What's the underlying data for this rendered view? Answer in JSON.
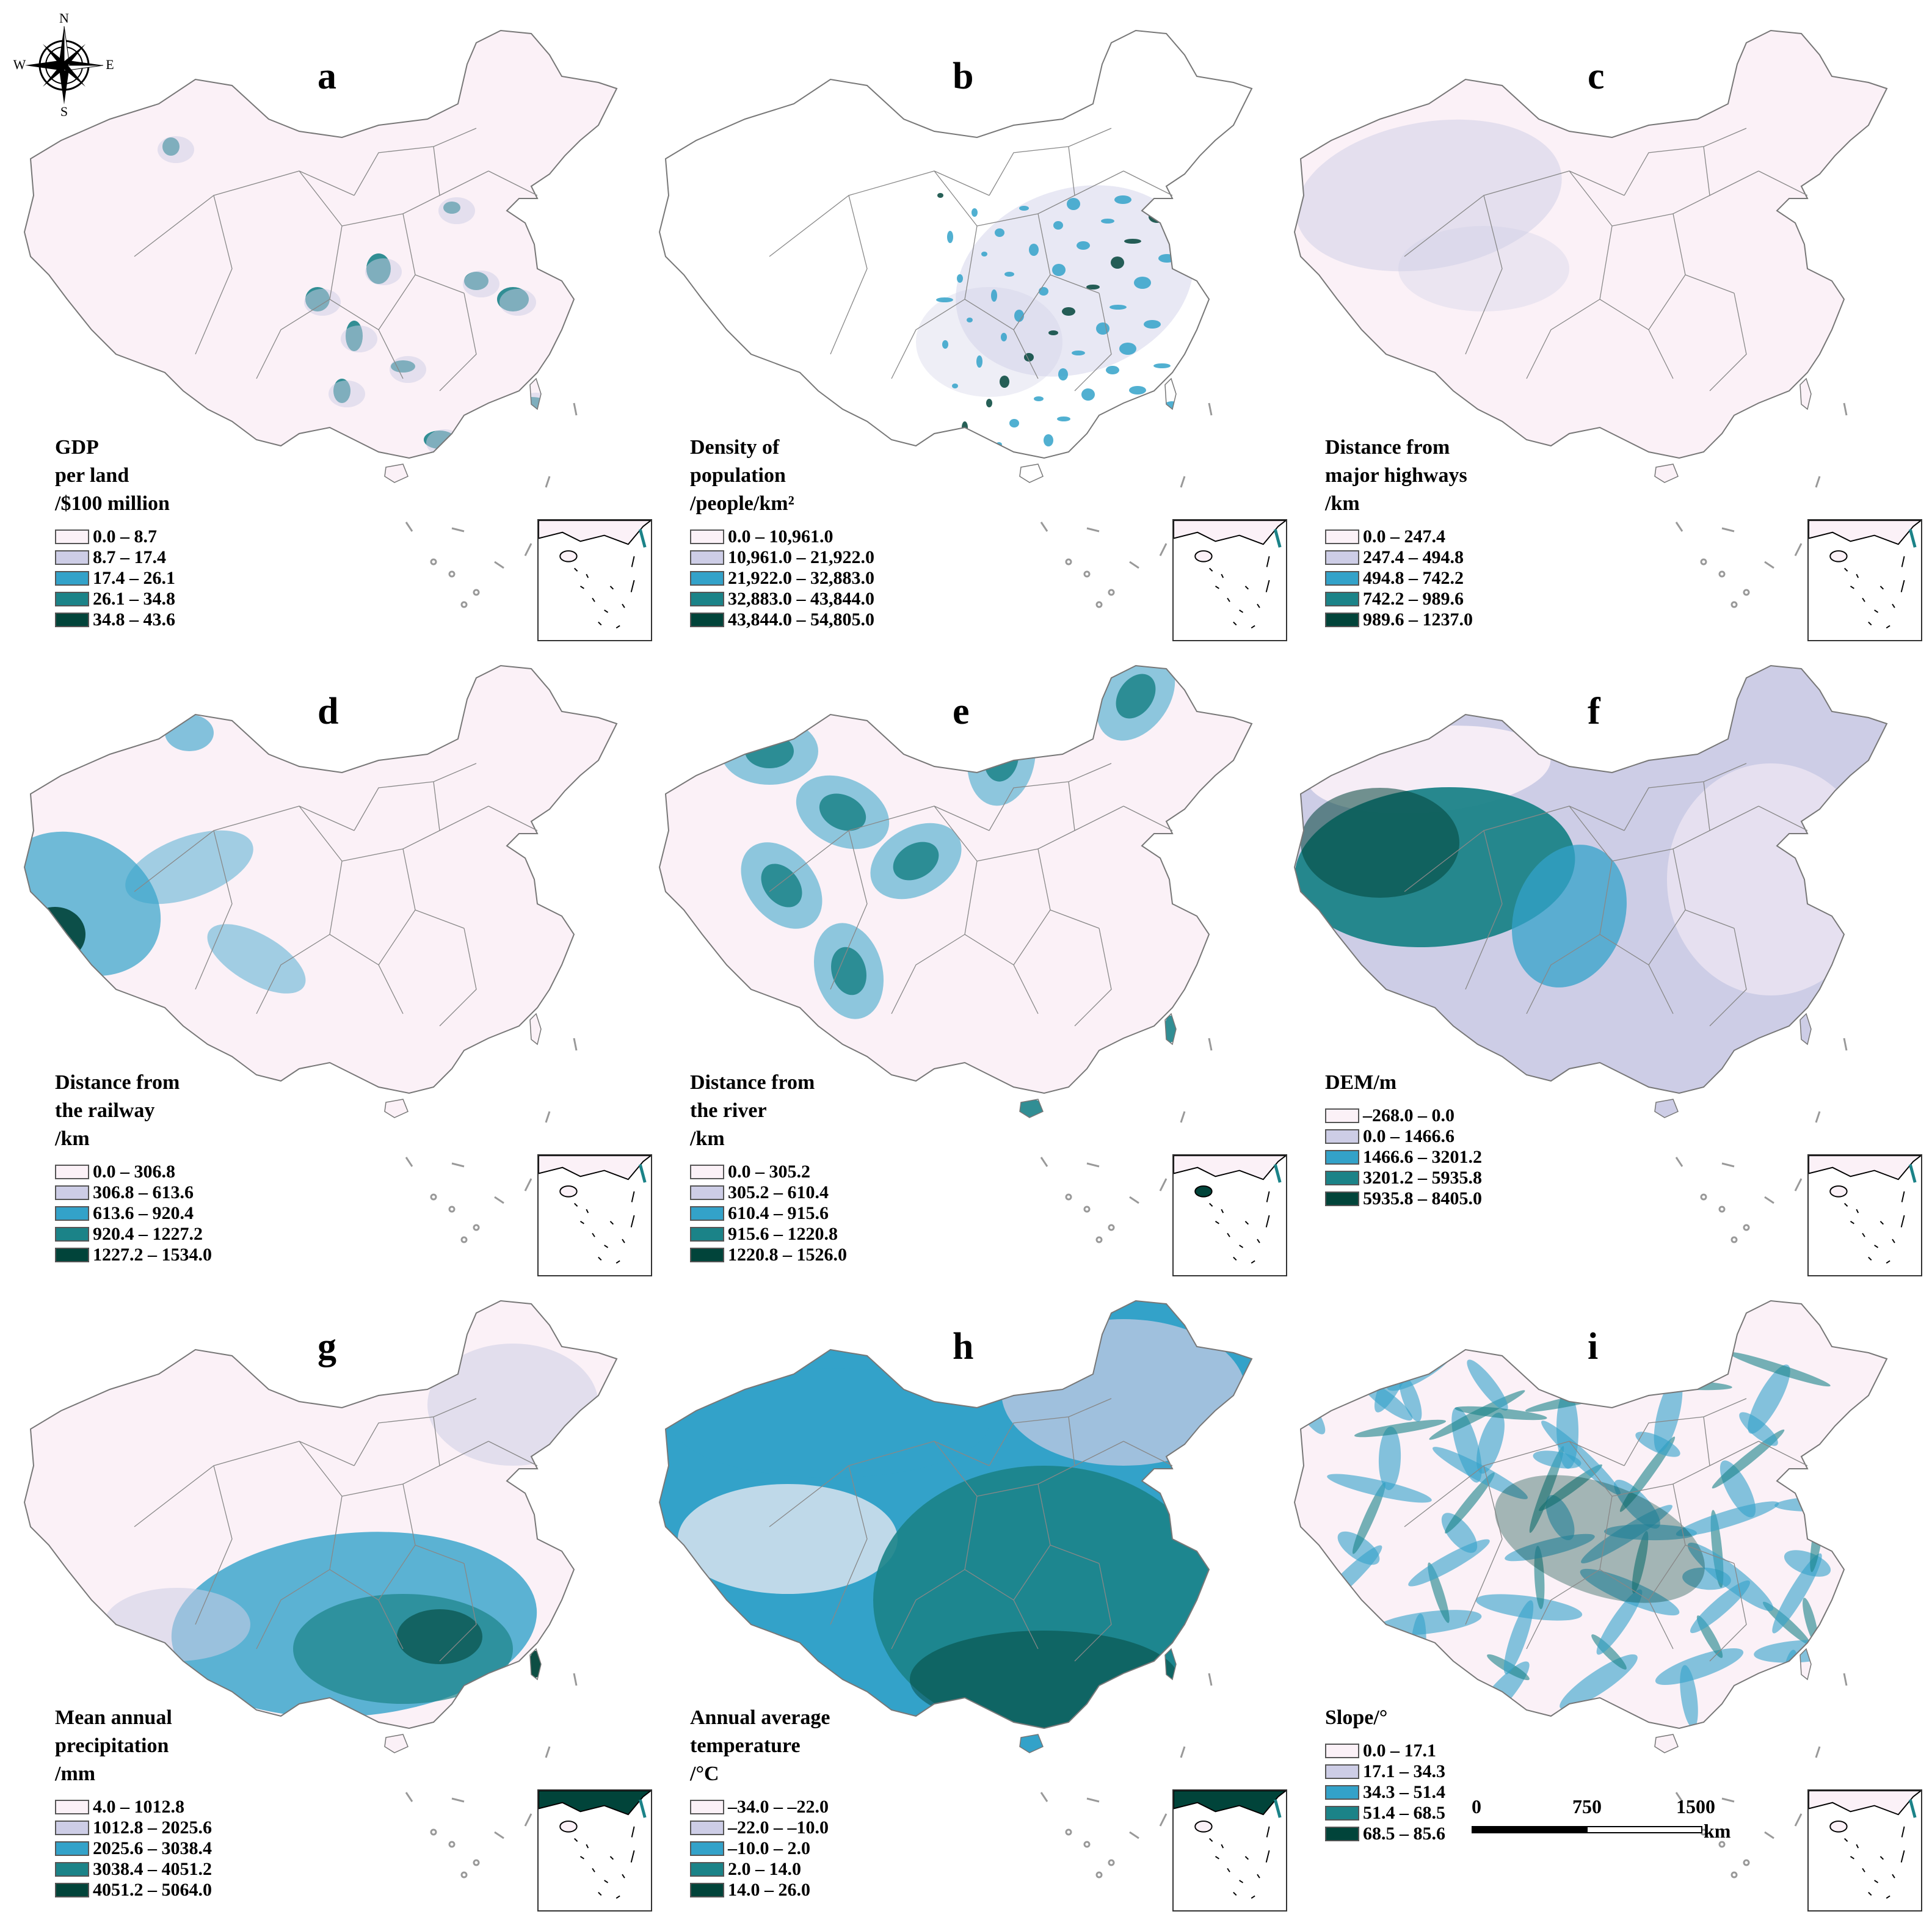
{
  "compass": {
    "n": "N",
    "s": "S",
    "e": "E",
    "w": "W"
  },
  "panels": [
    {
      "id": "a",
      "title_lines": [
        "GDP",
        "per land",
        "/$100 million"
      ],
      "ranges": [
        "0.0 – 8.7",
        "8.7 – 17.4",
        "17.4 – 26.1",
        "26.1 – 34.8",
        "34.8 – 43.6"
      ],
      "pattern": "hotspots-sparse"
    },
    {
      "id": "b",
      "title_lines": [
        "Density of",
        "population",
        "/people/km²"
      ],
      "ranges": [
        "0.0 – 10,961.0",
        "10,961.0 – 21,922.0",
        "21,922.0 – 32,883.0",
        "32,883.0 – 43,844.0",
        "43,844.0 – 54,805.0"
      ],
      "pattern": "hotspots-dense"
    },
    {
      "id": "c",
      "title_lines": [
        "Distance from",
        "major highways",
        "/km"
      ],
      "ranges": [
        "0.0 – 247.4",
        "247.4 – 494.8",
        "494.8 – 742.2",
        "742.2 – 989.6",
        "989.6 – 1237.0"
      ],
      "pattern": "faint-west"
    },
    {
      "id": "d",
      "title_lines": [
        "Distance from",
        "the railway",
        "/km"
      ],
      "ranges": [
        "0.0 – 306.8",
        "306.8 – 613.6",
        "613.6 – 920.4",
        "920.4 – 1227.2",
        "1227.2 – 1534.0"
      ],
      "pattern": "far-west"
    },
    {
      "id": "e",
      "title_lines": [
        "Distance from",
        "the river",
        "/km"
      ],
      "ranges": [
        "0.0 – 305.2",
        "305.2 – 610.4",
        "610.4 – 915.6",
        "915.6 – 1220.8",
        "1220.8 – 1526.0"
      ],
      "pattern": "river-blobs"
    },
    {
      "id": "f",
      "title_lines": [
        "DEM/m"
      ],
      "ranges": [
        "–268.0 – 0.0",
        "0.0 – 1466.6",
        "1466.6 – 3201.2",
        "3201.2 – 5935.8",
        "5935.8 – 8405.0"
      ],
      "pattern": "plateau"
    },
    {
      "id": "g",
      "title_lines": [
        "Mean annual",
        "precipitation",
        "/mm"
      ],
      "ranges": [
        "4.0 – 1012.8",
        "1012.8 – 2025.6",
        "2025.6 – 3038.4",
        "3038.4 – 4051.2",
        "4051.2 – 5064.0"
      ],
      "pattern": "south-wet"
    },
    {
      "id": "h",
      "title_lines": [
        "Annual average",
        "temperature",
        "/°C"
      ],
      "ranges": [
        "–34.0 – –22.0",
        "–22.0 – –10.0",
        "–10.0 – 2.0",
        "2.0 – 14.0",
        "14.0 – 26.0"
      ],
      "pattern": "warm-east"
    },
    {
      "id": "i",
      "title_lines": [
        "Slope/°"
      ],
      "ranges": [
        "0.0 – 17.1",
        "17.1 – 34.3",
        "34.3 – 51.4",
        "51.4 – 68.5",
        "68.5 – 85.6"
      ],
      "pattern": "slope"
    }
  ],
  "palette": [
    "#fbf1f7",
    "#cdcde6",
    "#33a2c9",
    "#1b8388",
    "#01443a"
  ],
  "scale_bar": {
    "ticks": [
      "0",
      "750",
      "1500"
    ],
    "unit": "km"
  }
}
